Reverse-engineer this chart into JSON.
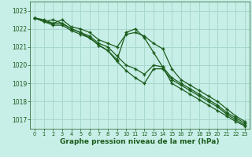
{
  "title": "Graphe pression niveau de la mer (hPa)",
  "background_color": "#c8eee8",
  "grid_color": "#a8d8cc",
  "line_color": "#1a5c1a",
  "marker_color": "#1a5c1a",
  "xlim": [
    -0.5,
    23.5
  ],
  "ylim": [
    1016.5,
    1023.5
  ],
  "yticks": [
    1017,
    1018,
    1019,
    1020,
    1021,
    1022,
    1023
  ],
  "xticks": [
    0,
    1,
    2,
    3,
    4,
    5,
    6,
    7,
    8,
    9,
    10,
    11,
    12,
    13,
    14,
    15,
    16,
    17,
    18,
    19,
    20,
    21,
    22,
    23
  ],
  "series": [
    [
      1022.6,
      1022.4,
      1022.3,
      1022.5,
      1022.1,
      1022.0,
      1021.8,
      1021.4,
      1021.2,
      1021.0,
      1021.7,
      1021.8,
      1021.6,
      1021.2,
      1020.9,
      1019.8,
      1019.2,
      1018.9,
      1018.6,
      1018.3,
      1018.0,
      1017.6,
      1017.2,
      1016.9
    ],
    [
      1022.6,
      1022.4,
      1022.2,
      1022.2,
      1021.9,
      1021.7,
      1021.5,
      1021.1,
      1020.8,
      1020.2,
      1019.7,
      1019.3,
      1019.0,
      1019.8,
      1019.8,
      1019.2,
      1018.9,
      1018.6,
      1018.3,
      1018.0,
      1017.7,
      1017.3,
      1017.0,
      1016.7
    ],
    [
      1022.6,
      1022.5,
      1022.3,
      1022.3,
      1022.0,
      1021.8,
      1021.6,
      1021.2,
      1021.0,
      1020.5,
      1020.0,
      1019.8,
      1019.5,
      1020.0,
      1019.9,
      1019.3,
      1019.0,
      1018.7,
      1018.4,
      1018.1,
      1017.8,
      1017.4,
      1017.1,
      1016.8
    ],
    [
      1022.6,
      1022.4,
      1022.5,
      1022.3,
      1022.0,
      1021.8,
      1021.5,
      1021.1,
      1020.8,
      1020.3,
      1021.8,
      1022.0,
      1021.5,
      1020.7,
      1019.9,
      1019.0,
      1018.7,
      1018.4,
      1018.1,
      1017.8,
      1017.5,
      1017.2,
      1016.9,
      1016.65
    ]
  ]
}
